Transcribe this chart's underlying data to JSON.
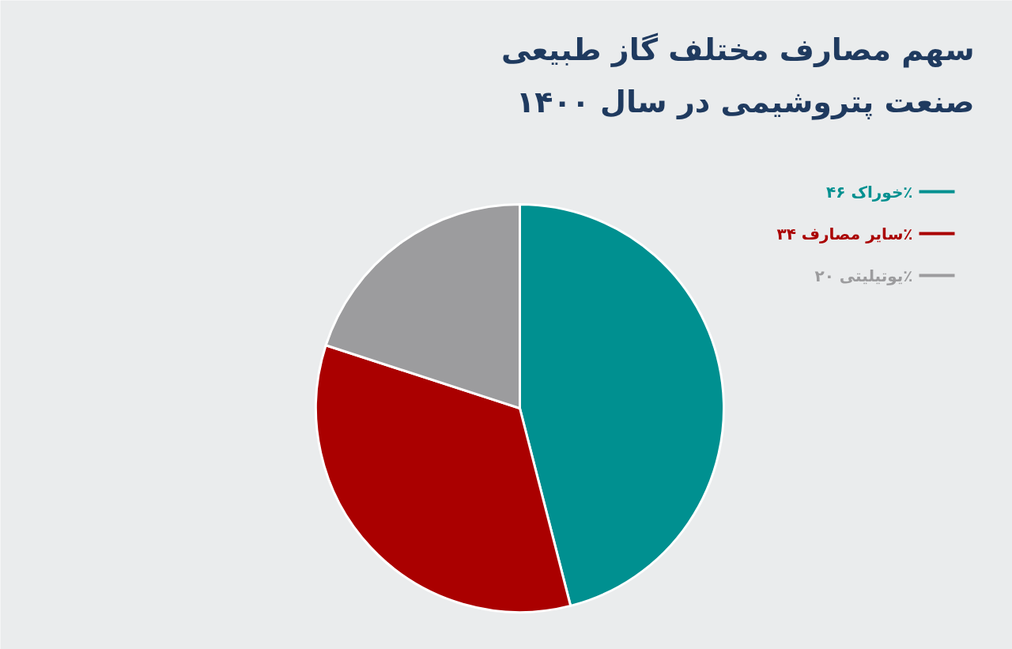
{
  "chart_data": {
    "type": "pie",
    "title": "سهم مصارف مختلف گاز طبیعی\nصنعت پتروشیمی در سال ۱۴۰۰",
    "categories": [
      "خوراک ۴۶٪",
      "سایر مصارف ۳۴٪",
      "یوتیلیتی ۲۰٪"
    ],
    "values": [
      46,
      34,
      20
    ],
    "colors": [
      "#009090",
      "#aa0000",
      "#9c9c9e"
    ],
    "legend": "top right"
  }
}
